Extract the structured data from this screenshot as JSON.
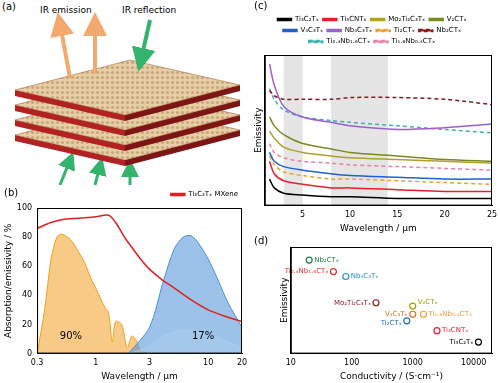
{
  "diagram": {
    "panel_label": "(a)",
    "labels": [
      "IR emission",
      "IR reflection"
    ]
  },
  "chart_data": [
    {
      "type": "line",
      "panel_label": "(b)",
      "x_label": "Wavelength / μm",
      "y_label": "Absorption/emissivity / %",
      "series": [
        {
          "name": "Ti₃C₂Tₓ MXene",
          "color": "#e02020",
          "x": [
            0.3,
            0.4,
            0.5,
            0.7,
            1.0,
            1.3,
            1.5,
            1.8,
            2.0,
            2.5,
            3,
            4,
            5,
            7,
            10,
            15,
            20
          ],
          "values": [
            86,
            90,
            92,
            93,
            94,
            95,
            90,
            80,
            75,
            65,
            58,
            50,
            45,
            37,
            30,
            25,
            22
          ]
        },
        {
          "type": "area",
          "color": "#a9cdee",
          "x": [
            2,
            3,
            4,
            5,
            6,
            7,
            8,
            10,
            12,
            15,
            20
          ],
          "values": [
            0,
            5,
            12,
            15,
            16,
            16,
            15,
            13,
            11,
            8,
            4
          ]
        },
        {
          "type": "area",
          "color": "#4a90d9",
          "x": [
            2,
            3,
            4,
            5,
            6,
            7,
            8,
            10,
            12,
            15,
            20
          ],
          "values": [
            1,
            18,
            50,
            72,
            80,
            81,
            77,
            65,
            52,
            35,
            18
          ]
        },
        {
          "type": "area",
          "color": "#f0a020",
          "x": [
            0.3,
            0.35,
            0.4,
            0.45,
            0.5,
            0.6,
            0.7,
            0.8,
            0.9,
            1.0,
            1.1,
            1.2,
            1.3,
            1.4,
            1.5,
            1.7,
            1.9,
            2.1,
            2.3,
            2.5,
            3.0
          ],
          "values": [
            0,
            30,
            65,
            80,
            82,
            78,
            70,
            62,
            52,
            45,
            38,
            32,
            28,
            8,
            22,
            20,
            4,
            12,
            9,
            2,
            0
          ]
        }
      ],
      "annotations": [
        {
          "text": "90%",
          "x": 0.6,
          "y": 12
        },
        {
          "text": "17%",
          "x": 9,
          "y": 12
        }
      ],
      "xlim": [
        0.3,
        20
      ],
      "xticks": [
        0.3,
        1,
        3,
        10,
        20
      ],
      "ylim": [
        0,
        100
      ],
      "yticks": [
        0,
        20,
        40,
        60,
        80,
        100
      ],
      "log": "x",
      "grid": false,
      "legend": "upper right"
    },
    {
      "type": "line",
      "panel_label": "(c)",
      "x_label": "Wavelength / μm",
      "y_label": "Emissivity",
      "x": [
        1.5,
        2,
        3,
        5,
        8,
        10,
        15,
        20,
        25
      ],
      "series": [
        {
          "name": "Ti₃C₂Tₓ",
          "color": "#000000",
          "values": [
            0.15,
            0.1,
            0.07,
            0.06,
            0.05,
            0.05,
            0.04,
            0.04,
            0.04
          ]
        },
        {
          "name": "Ti₃CNTₓ",
          "color": "#e8202a",
          "values": [
            0.25,
            0.18,
            0.14,
            0.12,
            0.1,
            0.1,
            0.09,
            0.08,
            0.08
          ]
        },
        {
          "name": "Mo₂Ti₂C₃Tₓ",
          "color": "#b0a030",
          "values": [
            0.42,
            0.38,
            0.33,
            0.3,
            0.28,
            0.27,
            0.26,
            0.25,
            0.24
          ]
        },
        {
          "name": "V₂CTₓ",
          "color": "#7a8a20",
          "values": [
            0.5,
            0.45,
            0.4,
            0.35,
            0.32,
            0.3,
            0.28,
            0.26,
            0.25
          ]
        },
        {
          "name": "V₄C₃Tₓ",
          "color": "#2060d0",
          "values": [
            0.3,
            0.25,
            0.22,
            0.2,
            0.18,
            0.17,
            0.16,
            0.15,
            0.15
          ]
        },
        {
          "name": "Nb₄C₃Tₓ",
          "color": "#9a60d0",
          "values": [
            0.8,
            0.68,
            0.56,
            0.5,
            0.47,
            0.45,
            0.43,
            0.44,
            0.46
          ]
        },
        {
          "name": "Ti₂CTₓ",
          "color": "#f0a030",
          "line_style": "dashed",
          "values": [
            0.28,
            0.23,
            0.19,
            0.17,
            0.15,
            0.15,
            0.14,
            0.13,
            0.12
          ]
        },
        {
          "name": "Nb₂CTₓ",
          "color": "#8b1a1a",
          "line_style": "dashed",
          "values": [
            0.65,
            0.62,
            0.6,
            0.6,
            0.6,
            0.61,
            0.61,
            0.6,
            0.57
          ]
        },
        {
          "name": "Ti₀.₄Nb₁.₆CTₓ",
          "color": "#40b0b0",
          "line_style": "dashed",
          "values": [
            0.66,
            0.6,
            0.54,
            0.5,
            0.48,
            0.47,
            0.45,
            0.43,
            0.41
          ]
        },
        {
          "name": "Ti₁.₆Nb₀.₄CTₓ",
          "color": "#f080a0",
          "line_style": "dashed",
          "values": [
            0.35,
            0.3,
            0.27,
            0.25,
            0.24,
            0.23,
            0.22,
            0.21,
            0.2
          ]
        }
      ],
      "bands": [
        [
          3,
          5
        ],
        [
          8,
          14
        ]
      ],
      "xlim": [
        1,
        25
      ],
      "xticks": [
        5,
        10,
        15,
        20,
        25
      ],
      "ylim": [
        0,
        0.85
      ],
      "grid": false,
      "legend": "top",
      "tick_labels": "x"
    },
    {
      "type": "scatter",
      "panel_label": "(d)",
      "x_label": "Conductivity / (S·cm⁻¹)",
      "y_label": "Emissivity",
      "x": [
        12000,
        2500,
        800,
        1000,
        1500,
        1000,
        250,
        80,
        50,
        20
      ],
      "values": [
        0.07,
        0.14,
        0.2,
        0.24,
        0.24,
        0.29,
        0.31,
        0.47,
        0.5,
        0.57
      ],
      "point_labels": [
        "Ti₃C₂Tₓ",
        "Ti₃CNTₓ",
        "Ti₂CTₓ",
        "V₄C₃Tₓ",
        "Ti₁.₆Nb₀.₄CTₓ",
        "V₂CTₓ",
        "Mo₂Ti₂C₃Tₓ",
        "Nb₄C₃Tₓ",
        "Ti₀.₄Nb₁.₆CTₓ",
        "Nb₂CTₓ"
      ],
      "colors": [
        "#000000",
        "#e02030",
        "#2070d0",
        "#e07020",
        "#f0a030",
        "#a0a000",
        "#8b2020",
        "#2090c0",
        "#e03030",
        "#208040"
      ],
      "marker": "circle",
      "xlim": [
        10,
        20000
      ],
      "xticks": [
        10,
        100,
        1000,
        10000
      ],
      "ylim": [
        0,
        0.65
      ],
      "log": "x",
      "grid": false,
      "tick_labels": "x"
    }
  ]
}
